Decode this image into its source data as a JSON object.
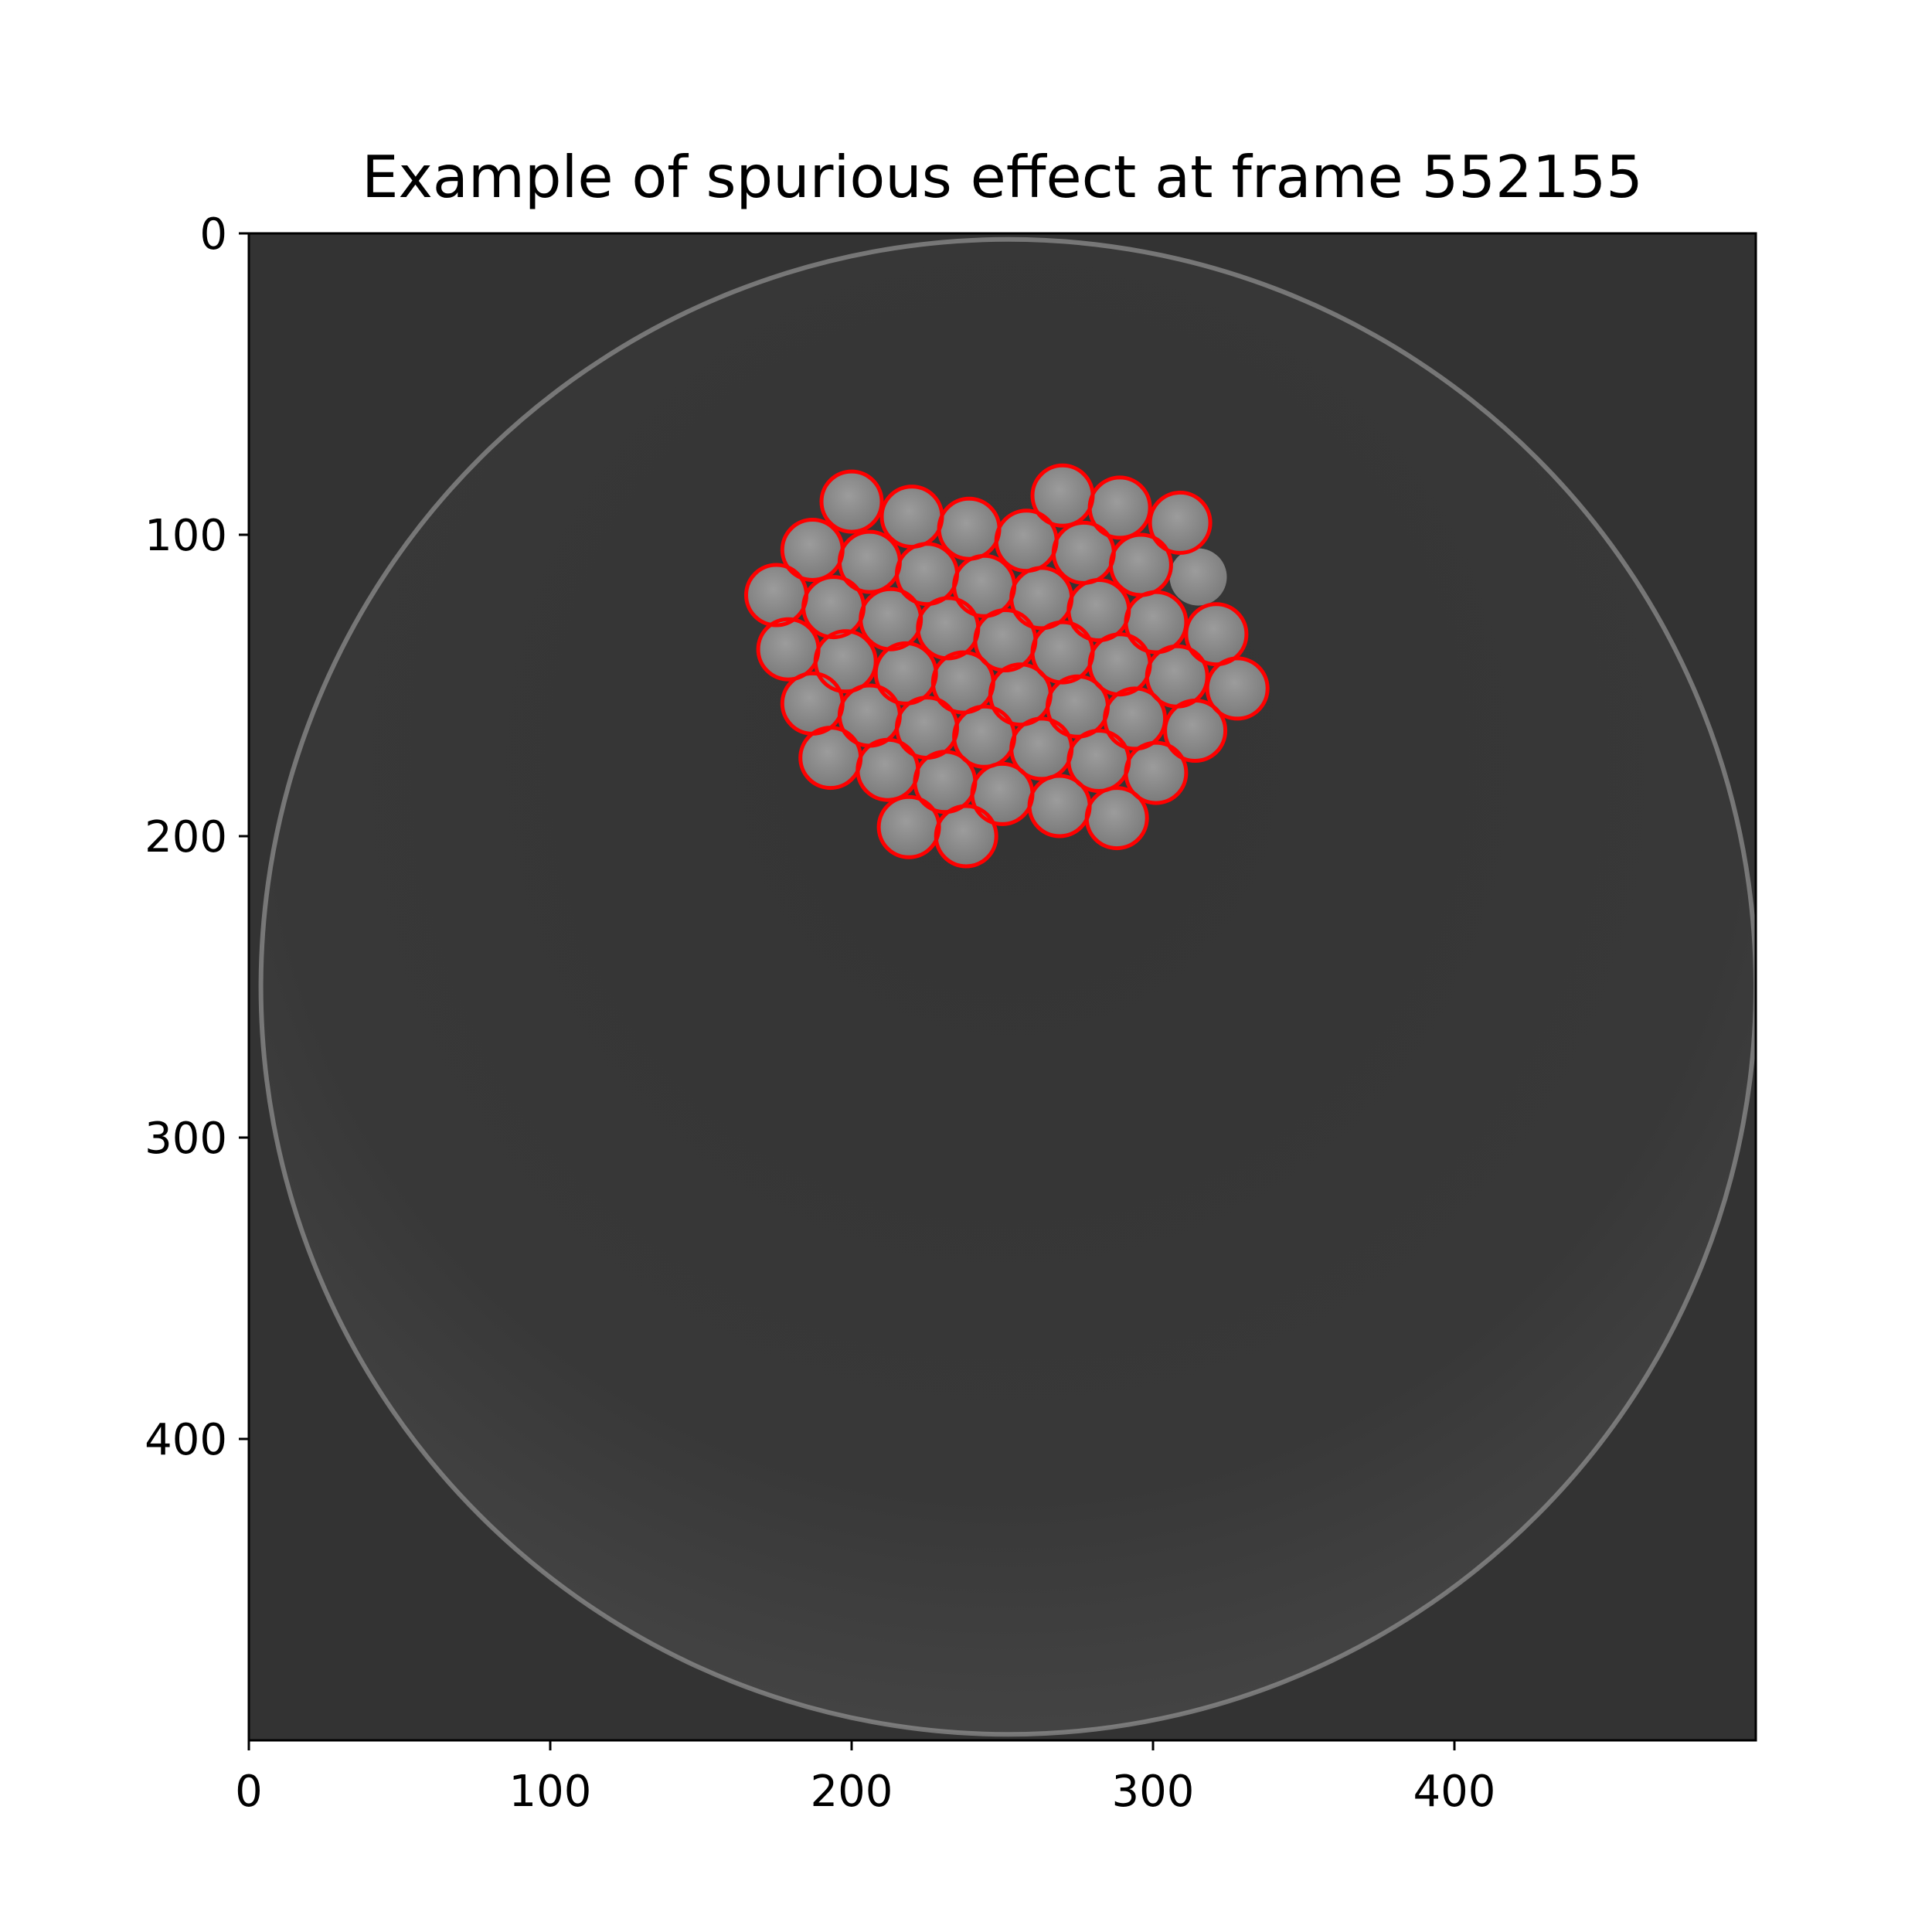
{
  "chart_data": {
    "type": "image",
    "title": "Example of spurious effect at frame 552155",
    "xlim": [
      0,
      500
    ],
    "ylim": [
      500,
      0
    ],
    "y_inverted": true,
    "xticks": [
      0,
      100,
      200,
      300,
      400
    ],
    "yticks": [
      0,
      100,
      200,
      300,
      400
    ],
    "xtick_labels": [
      "0",
      "100",
      "200",
      "300",
      "400"
    ],
    "ytick_labels": [
      "0",
      "100",
      "200",
      "300",
      "400"
    ],
    "dish": {
      "cx": 252,
      "cy": 250,
      "r": 248
    },
    "detection_radius": 10,
    "detections": [
      [
        200,
        89
      ],
      [
        220,
        94
      ],
      [
        239,
        98
      ],
      [
        270,
        87
      ],
      [
        289,
        91
      ],
      [
        309,
        96
      ],
      [
        187,
        105
      ],
      [
        206,
        109
      ],
      [
        225,
        113
      ],
      [
        258,
        102
      ],
      [
        277,
        106
      ],
      [
        296,
        110
      ],
      [
        175,
        120
      ],
      [
        194,
        124
      ],
      [
        213,
        128
      ],
      [
        244,
        117
      ],
      [
        263,
        121
      ],
      [
        282,
        125
      ],
      [
        301,
        129
      ],
      [
        321,
        133
      ],
      [
        179,
        138
      ],
      [
        198,
        142
      ],
      [
        218,
        146
      ],
      [
        232,
        131
      ],
      [
        251,
        135
      ],
      [
        270,
        139
      ],
      [
        289,
        143
      ],
      [
        308,
        147
      ],
      [
        328,
        151
      ],
      [
        187,
        156
      ],
      [
        206,
        160
      ],
      [
        225,
        164
      ],
      [
        237,
        149
      ],
      [
        256,
        153
      ],
      [
        275,
        157
      ],
      [
        294,
        161
      ],
      [
        314,
        165
      ],
      [
        193,
        174
      ],
      [
        212,
        178
      ],
      [
        231,
        182
      ],
      [
        244,
        167
      ],
      [
        263,
        171
      ],
      [
        282,
        175
      ],
      [
        301,
        179
      ],
      [
        219,
        197
      ],
      [
        238,
        200
      ],
      [
        250,
        186
      ],
      [
        269,
        190
      ],
      [
        288,
        194
      ]
    ],
    "undetected_particles": [
      [
        315,
        114
      ]
    ],
    "colors": {
      "detection_outline": "#ff0000",
      "background": "#333333",
      "particle_fill": "#8a8a8a"
    }
  }
}
